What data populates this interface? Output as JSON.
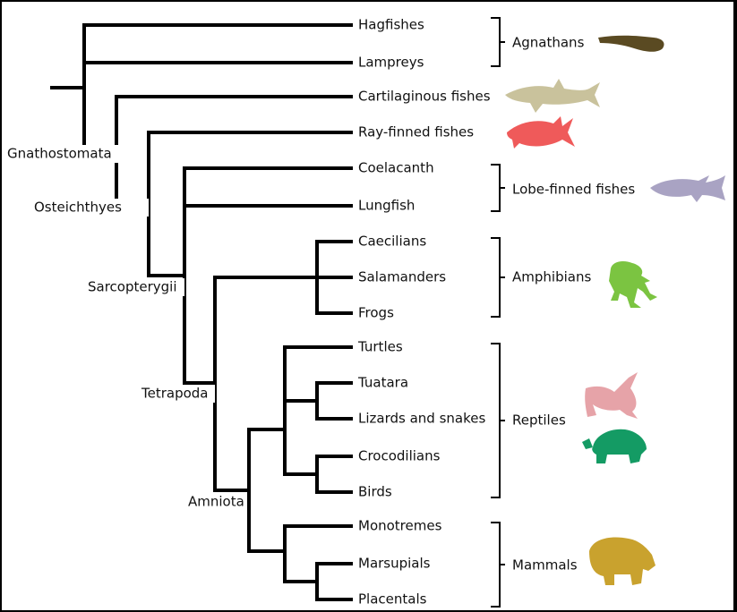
{
  "taxa": [
    "Hagfishes",
    "Lampreys",
    "Cartilaginous fishes",
    "Ray-finned fishes",
    "Coelacanth",
    "Lungfish",
    "Caecilians",
    "Salamanders",
    "Frogs",
    "Turtles",
    "Tuatara",
    "Lizards and snakes",
    "Crocodilians",
    "Birds",
    "Monotremes",
    "Marsupials",
    "Placentals"
  ],
  "clades": {
    "gnathostomata": "Gnathostomata",
    "osteichthyes": "Osteichthyes",
    "sarcopterygii": "Sarcopterygii",
    "tetrapoda": "Tetrapoda",
    "amniota": "Amniota"
  },
  "groups": [
    {
      "label": "Agnathans",
      "silhouette": "lamprey-icon",
      "color": "#5a4a22"
    },
    {
      "label": "Lobe-finned fishes",
      "silhouette": "coelacanth-icon",
      "color": "#a9a3c3"
    },
    {
      "label": "Amphibians",
      "silhouette": "frog-icon",
      "color": "#7bc441"
    },
    {
      "label": "Reptiles",
      "silhouette": "bird-icon",
      "color": "#e6a3a8"
    },
    {
      "label": "Reptiles",
      "silhouette": "turtle-icon",
      "color": "#149b64"
    },
    {
      "label": "Mammals",
      "silhouette": "bear-icon",
      "color": "#c9a22e"
    }
  ],
  "fish_colors": {
    "shark": "#c9c29c",
    "tuna": "#ef5a5a"
  }
}
